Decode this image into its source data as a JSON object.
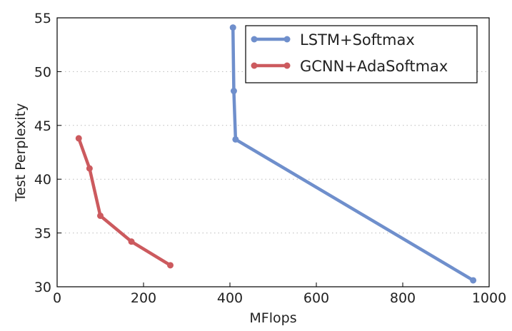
{
  "chart_data": {
    "type": "line",
    "title": "",
    "xlabel": "MFlops",
    "ylabel": "Test Perplexity",
    "xlim": [
      0,
      1000
    ],
    "ylim": [
      30,
      55
    ],
    "xticks": [
      0,
      200,
      400,
      600,
      800,
      1000
    ],
    "yticks": [
      30,
      35,
      40,
      45,
      50,
      55
    ],
    "grid": "horizontal-dotted",
    "legend_position": "top-right",
    "series": [
      {
        "name": "LSTM+Softmax",
        "color": "#6f8fcc",
        "x": [
          407,
          409,
          413,
          963
        ],
        "y": [
          54.1,
          48.2,
          43.7,
          30.6
        ]
      },
      {
        "name": "GCNN+AdaSoftmax",
        "color": "#cc5a5e",
        "x": [
          50,
          75,
          100,
          172,
          262
        ],
        "y": [
          43.8,
          41.0,
          36.6,
          34.2,
          32.0
        ]
      }
    ]
  }
}
